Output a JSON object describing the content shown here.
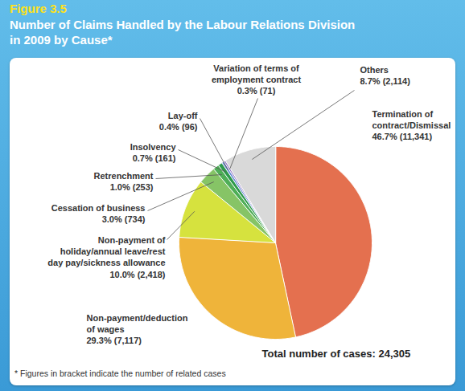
{
  "chart_data": {
    "type": "pie",
    "title": "Number of Claims Handled by the Labour Relations Division in 2009 by Cause*",
    "categories": [
      "Termination of contract/Dismissal",
      "Non-payment/deduction of wages",
      "Non-payment of holiday/annual leave/rest day pay/sickness allowance",
      "Cessation of business",
      "Retrenchment",
      "Insolvency",
      "Lay-off",
      "Variation of terms of employment contract",
      "Others"
    ],
    "values": [
      46.7,
      29.3,
      10.0,
      3.0,
      1.0,
      0.7,
      0.4,
      0.3,
      8.7
    ],
    "value_labels": [
      "46.7% (11,341)",
      "29.3% (7,117)",
      "10.0% (2,418)",
      "3.0% (734)",
      "1.0% (253)",
      "0.7% (161)",
      "0.4% (96)",
      "0.3% (71)",
      "8.7% (2,114)"
    ],
    "colors": [
      "#e4704f",
      "#efb43a",
      "#d6e23e",
      "#86c466",
      "#4fae57",
      "#2f9a4c",
      "#6b8fd4",
      "#9c80c9",
      "#d9d9d9"
    ],
    "data_labels": true,
    "annotations": {
      "figure": "Figure 3.5",
      "total": "Total number of cases: 24,305",
      "note": "* Figures in bracket indicate the number of related cases"
    }
  }
}
